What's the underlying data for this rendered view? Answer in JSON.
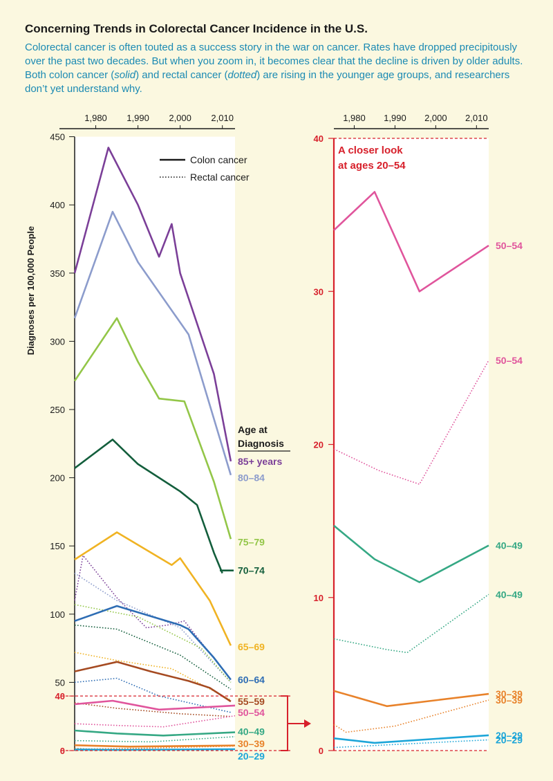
{
  "header": {
    "title": "Concerning Trends in Colorectal Cancer Incidence in the U.S.",
    "subtitle_parts": [
      "Colorectal cancer is often touted as a success story in the war on cancer. Rates have dropped precipitously over the past two decades. But when you zoom in, it becomes clear that the decline is driven by older adults. Both colon cancer (",
      "solid",
      ") and rectal cancer (",
      "dotted",
      ") are rising in the younger age groups, and researchers don’t yet understand why."
    ]
  },
  "colors": {
    "accent_red": "#d7202b",
    "ink": "#1a1a1a",
    "age_85_plus": "#7b3f98",
    "age_80_84": "#8c9ccc",
    "age_75_79": "#93c648",
    "age_70_74": "#135e3c",
    "age_65_69": "#f0b323",
    "age_60_64": "#2e6db4",
    "age_55_59": "#a54a21",
    "age_50_54": "#e0559c",
    "age_40_49": "#35a884",
    "age_30_39": "#e8822a",
    "age_20_29": "#1ca5d8"
  },
  "chart_data": [
    {
      "type": "line",
      "ylabel": "Diagnoses per 100,000 People",
      "xlabel": "",
      "x_ticks": [
        1980,
        1990,
        2000,
        2010
      ],
      "y_ticks": [
        0,
        40,
        50,
        100,
        150,
        200,
        250,
        300,
        350,
        400,
        450
      ],
      "xlim": [
        1975,
        2013
      ],
      "ylim": [
        0,
        450
      ],
      "legend": {
        "position": "top-right",
        "entries": [
          {
            "label": "Colon cancer",
            "style": "solid"
          },
          {
            "label": "Rectal cancer",
            "style": "dotted"
          }
        ]
      },
      "label_group_title": "Age at\nDiagnosis",
      "zoom_region": [
        0,
        40
      ],
      "series": [
        {
          "name": "85+ years",
          "kind": "colon",
          "color": "#7b3f98",
          "label_y": 212,
          "points": [
            [
              1975,
              350
            ],
            [
              1983,
              442
            ],
            [
              1990,
              400
            ],
            [
              1995,
              362
            ],
            [
              1998,
              386
            ],
            [
              2000,
              350
            ],
            [
              2004,
              313
            ],
            [
              2008,
              276
            ],
            [
              2012,
              212
            ]
          ]
        },
        {
          "name": "80–84",
          "kind": "colon",
          "color": "#8c9ccc",
          "label_y": 200,
          "points": [
            [
              1975,
              317
            ],
            [
              1984,
              395
            ],
            [
              1990,
              358
            ],
            [
              2002,
              305
            ],
            [
              2012,
              202
            ]
          ]
        },
        {
          "name": "75–79",
          "kind": "colon",
          "color": "#93c648",
          "label_y": 153,
          "points": [
            [
              1975,
              271
            ],
            [
              1985,
              317
            ],
            [
              1990,
              285
            ],
            [
              1995,
              258
            ],
            [
              1998,
              257
            ],
            [
              2001,
              256
            ],
            [
              2008,
              197
            ],
            [
              2012,
              155
            ]
          ]
        },
        {
          "name": "70–74",
          "kind": "colon",
          "color": "#135e3c",
          "label_y": 132,
          "points": [
            [
              1975,
              207
            ],
            [
              1984,
              228
            ],
            [
              1990,
              210
            ],
            [
              2000,
              190
            ],
            [
              2004,
              180
            ],
            [
              2008,
              145
            ],
            [
              2010,
              130
            ]
          ]
        },
        {
          "name": "65–69",
          "kind": "colon",
          "color": "#f0b323",
          "label_y": 76,
          "points": [
            [
              1975,
              140
            ],
            [
              1985,
              160
            ],
            [
              1998,
              136
            ],
            [
              2000,
              141
            ],
            [
              2007,
              110
            ],
            [
              2012,
              77
            ]
          ]
        },
        {
          "name": "60–64",
          "kind": "colon",
          "color": "#2e6db4",
          "label_y": 52,
          "points": [
            [
              1975,
              95
            ],
            [
              1985,
              106
            ],
            [
              2000,
              92
            ],
            [
              2002,
              89
            ],
            [
              2008,
              68
            ],
            [
              2012,
              52
            ]
          ]
        },
        {
          "name": "55–59",
          "kind": "colon",
          "color": "#a54a21",
          "label_y": 36,
          "points": [
            [
              1975,
              58
            ],
            [
              1985,
              65
            ],
            [
              1993,
              58
            ],
            [
              2002,
              51
            ],
            [
              2007,
              46
            ],
            [
              2012,
              36
            ]
          ]
        },
        {
          "name": "50–54",
          "kind": "colon",
          "color": "#e0559c",
          "label_y": 28,
          "points": [
            [
              1975,
              34
            ],
            [
              1984,
              36.5
            ],
            [
              1995,
              30
            ],
            [
              2013,
              33
            ]
          ]
        },
        {
          "name": "40–49",
          "kind": "colon",
          "color": "#35a884",
          "label_y": 14,
          "points": [
            [
              1975,
              14.7
            ],
            [
              1985,
              12.5
            ],
            [
              1996,
              11
            ],
            [
              2013,
              13.4
            ]
          ]
        },
        {
          "name": "30–39",
          "kind": "colon",
          "color": "#e8822a",
          "label_y": 5,
          "points": [
            [
              1975,
              3.9
            ],
            [
              1988,
              2.9
            ],
            [
              2013,
              3.7
            ]
          ]
        },
        {
          "name": "20–29",
          "kind": "colon",
          "color": "#1ca5d8",
          "label_y": -4,
          "points": [
            [
              1975,
              0.8
            ],
            [
              1985,
              0.5
            ],
            [
              2013,
              1.0
            ]
          ]
        },
        {
          "name": "85+ years",
          "kind": "rectal",
          "color": "#7b3f98",
          "points": [
            [
              1975,
              110
            ],
            [
              1977,
              143
            ],
            [
              1985,
              112
            ],
            [
              1992,
              90
            ],
            [
              1997,
              92
            ],
            [
              2001,
              95
            ],
            [
              2012,
              52
            ]
          ]
        },
        {
          "name": "80–84",
          "kind": "rectal",
          "color": "#8c9ccc",
          "points": [
            [
              1975,
              130
            ],
            [
              1985,
              110
            ],
            [
              2000,
              90
            ],
            [
              2012,
              50
            ]
          ]
        },
        {
          "name": "75–79",
          "kind": "rectal",
          "color": "#93c648",
          "points": [
            [
              1975,
              107
            ],
            [
              1990,
              98
            ],
            [
              2005,
              75
            ],
            [
              2012,
              50
            ]
          ]
        },
        {
          "name": "70–74",
          "kind": "rectal",
          "color": "#135e3c",
          "points": [
            [
              1975,
              92
            ],
            [
              1985,
              89
            ],
            [
              2000,
              70
            ],
            [
              2012,
              45
            ]
          ]
        },
        {
          "name": "65–69",
          "kind": "rectal",
          "color": "#f0b323",
          "points": [
            [
              1975,
              72
            ],
            [
              1985,
              66
            ],
            [
              1998,
              60
            ],
            [
              2012,
              37
            ]
          ]
        },
        {
          "name": "60–64",
          "kind": "rectal",
          "color": "#2e6db4",
          "points": [
            [
              1975,
              50
            ],
            [
              1985,
              53
            ],
            [
              1995,
              40
            ],
            [
              2012,
              28
            ]
          ]
        },
        {
          "name": "55–59",
          "kind": "rectal",
          "color": "#a54a21",
          "points": [
            [
              1975,
              35
            ],
            [
              1985,
              31
            ],
            [
              2000,
              27
            ],
            [
              2012,
              25
            ]
          ]
        },
        {
          "name": "50–54",
          "kind": "rectal",
          "color": "#e0559c",
          "points": [
            [
              1975,
              19.7
            ],
            [
              1986,
              18.3
            ],
            [
              1996,
              17.4
            ],
            [
              2013,
              25.5
            ]
          ]
        },
        {
          "name": "40–49",
          "kind": "rectal",
          "color": "#35a884",
          "points": [
            [
              1975,
              7.3
            ],
            [
              1988,
              6.6
            ],
            [
              1993,
              6.4
            ],
            [
              2013,
              10.2
            ]
          ]
        },
        {
          "name": "30–39",
          "kind": "rectal",
          "color": "#e8822a",
          "points": [
            [
              1975,
              1.7
            ],
            [
              1978,
              1.2
            ],
            [
              1990,
              1.6
            ],
            [
              2013,
              3.3
            ]
          ]
        },
        {
          "name": "20–29",
          "kind": "rectal",
          "color": "#1ca5d8",
          "points": [
            [
              1975,
              0.2
            ],
            [
              1990,
              0.4
            ],
            [
              2013,
              0.7
            ]
          ]
        }
      ]
    },
    {
      "type": "line",
      "title": "A closer look\nat ages 20–54",
      "xlabel": "",
      "ylabel": "",
      "x_ticks": [
        1980,
        1990,
        2000,
        2010
      ],
      "y_ticks": [
        0,
        10,
        20,
        30,
        40
      ],
      "xlim": [
        1975,
        2013
      ],
      "ylim": [
        0,
        40
      ],
      "series": [
        {
          "name": "50–54",
          "kind": "colon",
          "color": "#e0559c",
          "points": [
            [
              1975,
              34
            ],
            [
              1985,
              36.5
            ],
            [
              1996,
              30
            ],
            [
              2013,
              33
            ]
          ]
        },
        {
          "name": "50–54",
          "kind": "rectal",
          "color": "#e0559c",
          "points": [
            [
              1975,
              19.7
            ],
            [
              1986,
              18.3
            ],
            [
              1996,
              17.4
            ],
            [
              2013,
              25.5
            ]
          ]
        },
        {
          "name": "40–49",
          "kind": "colon",
          "color": "#35a884",
          "points": [
            [
              1975,
              14.7
            ],
            [
              1985,
              12.5
            ],
            [
              1996,
              11
            ],
            [
              2013,
              13.4
            ]
          ]
        },
        {
          "name": "40–49",
          "kind": "rectal",
          "color": "#35a884",
          "points": [
            [
              1975,
              7.3
            ],
            [
              1988,
              6.6
            ],
            [
              1993,
              6.4
            ],
            [
              2013,
              10.2
            ]
          ]
        },
        {
          "name": "30–39",
          "kind": "colon",
          "color": "#e8822a",
          "points": [
            [
              1975,
              3.9
            ],
            [
              1988,
              2.9
            ],
            [
              2013,
              3.7
            ]
          ]
        },
        {
          "name": "30–39",
          "kind": "rectal",
          "color": "#e8822a",
          "points": [
            [
              1975,
              1.7
            ],
            [
              1978,
              1.2
            ],
            [
              1990,
              1.6
            ],
            [
              2013,
              3.3
            ]
          ]
        },
        {
          "name": "20–29",
          "kind": "colon",
          "color": "#1ca5d8",
          "points": [
            [
              1975,
              0.8
            ],
            [
              1985,
              0.5
            ],
            [
              2013,
              1.0
            ]
          ]
        },
        {
          "name": "20–29",
          "kind": "rectal",
          "color": "#1ca5d8",
          "points": [
            [
              1975,
              0.2
            ],
            [
              1990,
              0.4
            ],
            [
              2013,
              0.7
            ]
          ]
        }
      ]
    }
  ]
}
